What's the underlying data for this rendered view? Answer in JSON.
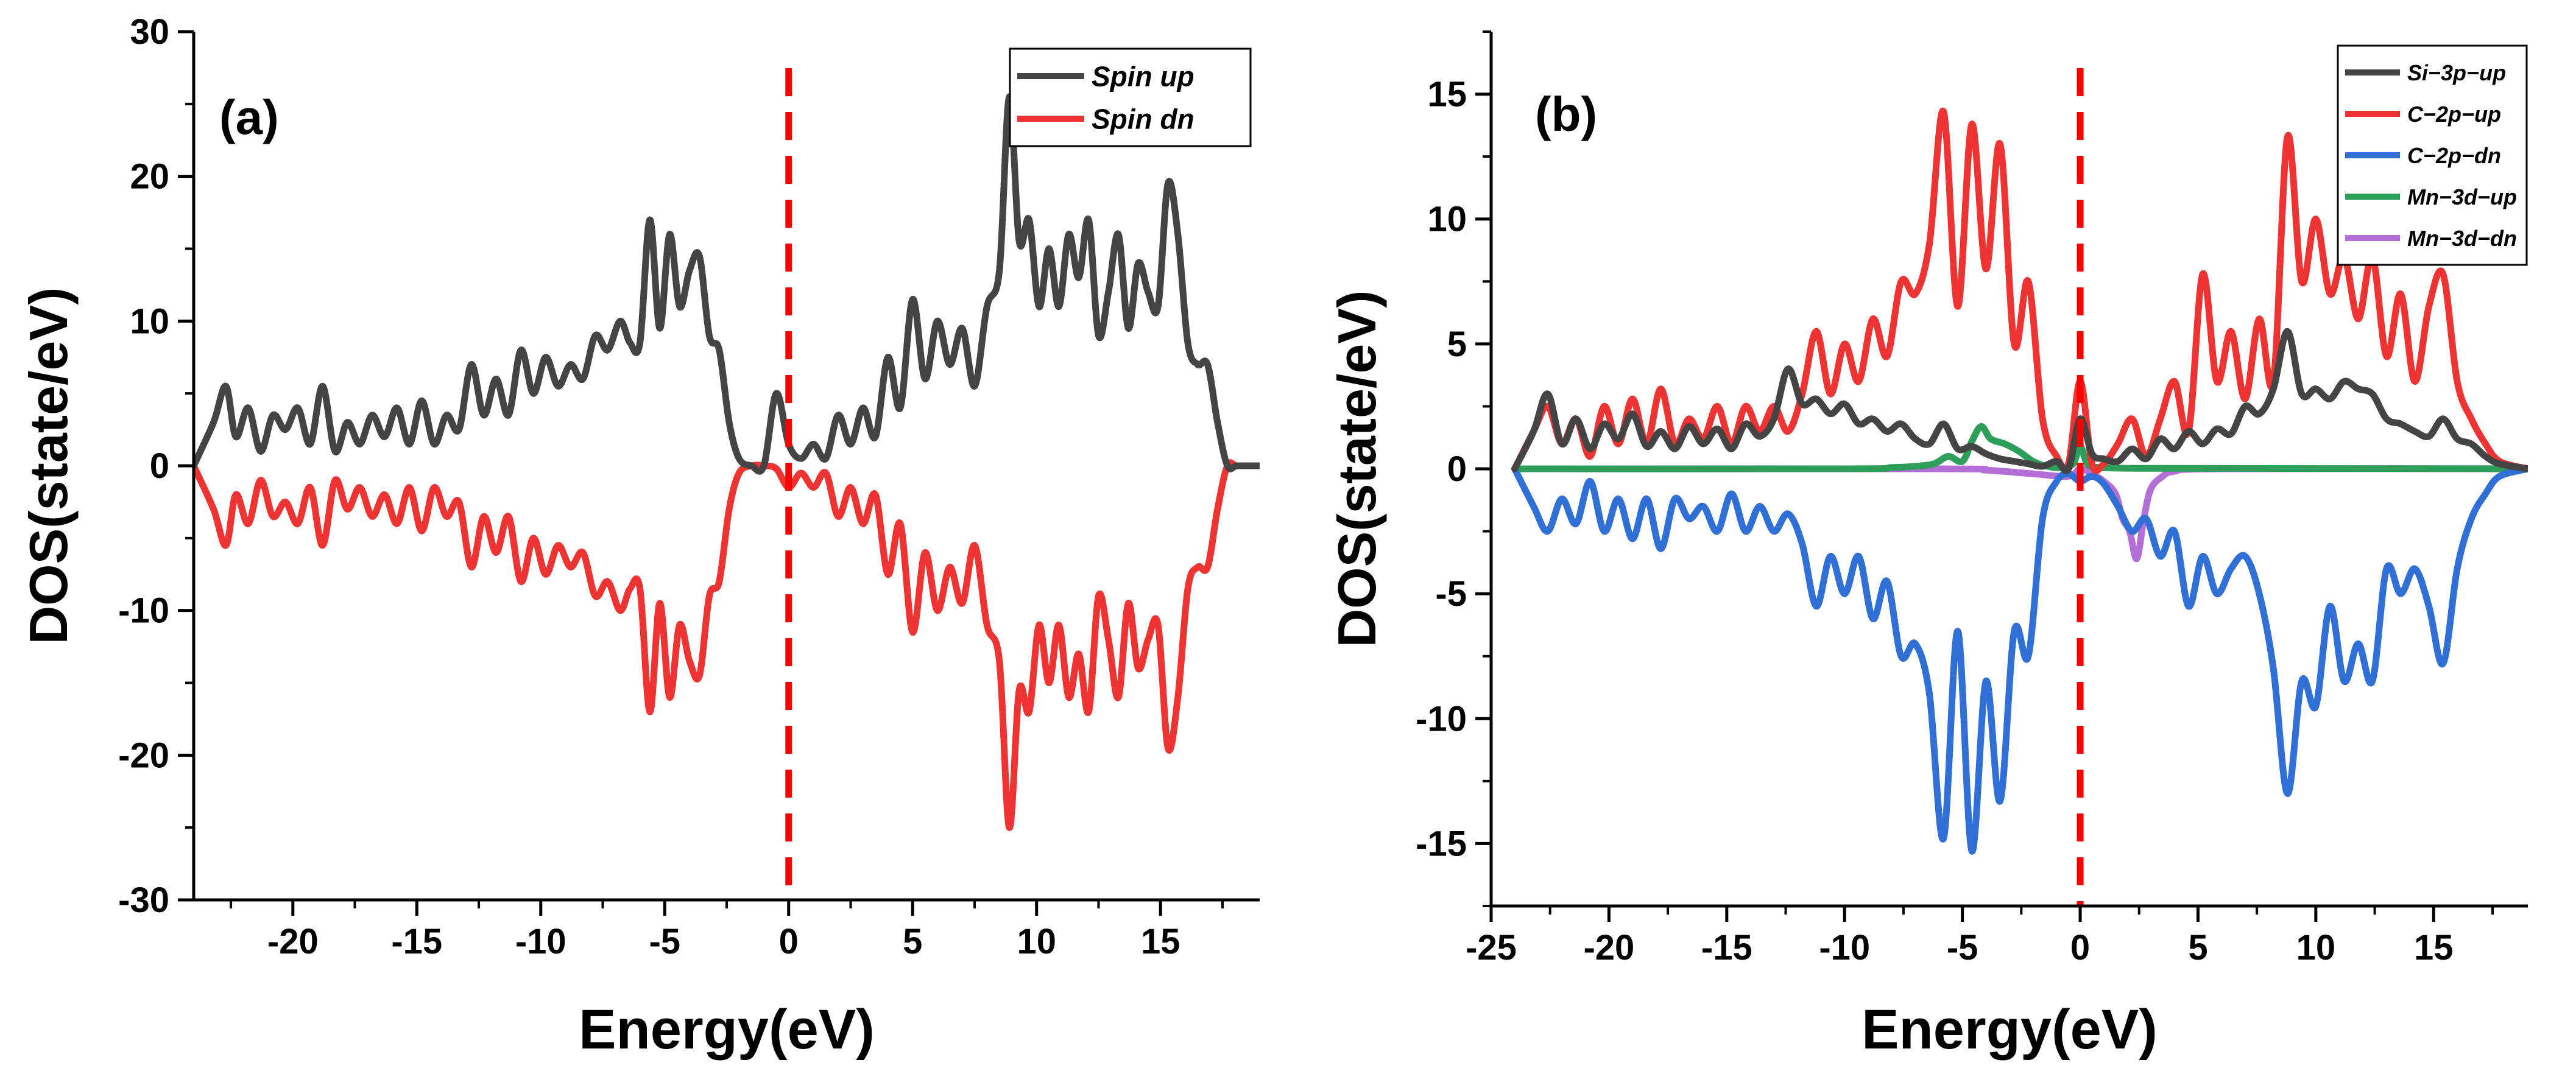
{
  "chart_data": [
    {
      "type": "line",
      "panel_label": "(a)",
      "xlabel": "Energy(eV)",
      "ylabel": "DOS(state/eV)",
      "xlim": [
        -24,
        19
      ],
      "ylim": [
        -30,
        30
      ],
      "xticks": [
        -20,
        -15,
        -10,
        -5,
        0,
        5,
        10,
        15
      ],
      "xtick_labels": [
        "-20",
        "-15",
        "-10",
        "-5",
        "0",
        "5",
        "10",
        "15"
      ],
      "yticks": [
        -30,
        -20,
        -10,
        0,
        10,
        20,
        30
      ],
      "ytick_labels": [
        "-30",
        "-20",
        "-10",
        "0",
        "10",
        "20",
        "30"
      ],
      "fermi_level": 0,
      "fermi_color": "#ff0000",
      "legend_position": "top-right",
      "series": [
        {
          "name": "Spin up",
          "color": "#444444",
          "x": [
            -24,
            -23.2,
            -22.7,
            -22.3,
            -21.8,
            -21.3,
            -20.8,
            -20.3,
            -19.8,
            -19.3,
            -18.8,
            -18.3,
            -17.8,
            -17.3,
            -16.8,
            -16.3,
            -15.8,
            -15.3,
            -14.8,
            -14.3,
            -13.8,
            -13.3,
            -12.8,
            -12.3,
            -11.8,
            -11.3,
            -10.8,
            -10.3,
            -9.8,
            -9.3,
            -8.8,
            -8.3,
            -7.8,
            -7.3,
            -6.8,
            -6.4,
            -6.0,
            -5.6,
            -5.2,
            -4.8,
            -4.4,
            -4.0,
            -3.6,
            -3.2,
            -2.8,
            -2.4,
            -2.0,
            -1.5,
            -1.0,
            -0.5,
            0,
            0.5,
            1.0,
            1.5,
            2.0,
            2.5,
            3.0,
            3.5,
            4.0,
            4.5,
            5.0,
            5.5,
            6.0,
            6.5,
            7.0,
            7.5,
            8.0,
            8.5,
            8.9,
            9.3,
            9.7,
            10.1,
            10.5,
            10.9,
            11.3,
            11.7,
            12.1,
            12.5,
            12.9,
            13.3,
            13.7,
            14.1,
            14.5,
            14.9,
            15.3,
            15.7,
            16.1,
            16.5,
            16.9,
            17.3,
            17.7,
            18.1,
            19
          ],
          "values": [
            0,
            3,
            5.5,
            2,
            4,
            1,
            3.5,
            2.5,
            4,
            1.5,
            5.5,
            1,
            3,
            1.5,
            3.5,
            2,
            4,
            1.5,
            4.5,
            1.5,
            3.5,
            2.5,
            7,
            3.5,
            6,
            3.5,
            8,
            5,
            7.5,
            5.5,
            7,
            6,
            9,
            8,
            10,
            8.5,
            8.5,
            17,
            9.5,
            16,
            11,
            13.5,
            14.5,
            9,
            8,
            3,
            0.5,
            0,
            0,
            5,
            1.5,
            0.5,
            1.5,
            0.5,
            3.5,
            1.5,
            4,
            2,
            7.5,
            4,
            11.5,
            6,
            10,
            7,
            9.5,
            5.5,
            11,
            13.5,
            25.5,
            15.5,
            17,
            11,
            15,
            11,
            16,
            13,
            17,
            9,
            12,
            16,
            9.5,
            14,
            12,
            11,
            19.5,
            16,
            8.5,
            7,
            7,
            3,
            0,
            0,
            0
          ]
        },
        {
          "name": "Spin dn",
          "color": "#ee3333",
          "x": [
            -24,
            -23.2,
            -22.7,
            -22.3,
            -21.8,
            -21.3,
            -20.8,
            -20.3,
            -19.8,
            -19.3,
            -18.8,
            -18.3,
            -17.8,
            -17.3,
            -16.8,
            -16.3,
            -15.8,
            -15.3,
            -14.8,
            -14.3,
            -13.8,
            -13.3,
            -12.8,
            -12.3,
            -11.8,
            -11.3,
            -10.8,
            -10.3,
            -9.8,
            -9.3,
            -8.8,
            -8.3,
            -7.8,
            -7.3,
            -6.8,
            -6.4,
            -6.0,
            -5.6,
            -5.2,
            -4.8,
            -4.4,
            -4.0,
            -3.6,
            -3.2,
            -2.8,
            -2.4,
            -2.0,
            -1.5,
            -1.0,
            -0.5,
            0,
            0.5,
            1.0,
            1.5,
            2.0,
            2.5,
            3.0,
            3.5,
            4.0,
            4.5,
            5.0,
            5.5,
            6.0,
            6.5,
            7.0,
            7.5,
            8.0,
            8.5,
            8.9,
            9.3,
            9.7,
            10.1,
            10.5,
            10.9,
            11.3,
            11.7,
            12.1,
            12.5,
            12.9,
            13.3,
            13.7,
            14.1,
            14.5,
            14.9,
            15.3,
            15.7,
            16.1,
            16.5,
            16.9,
            17.3,
            17.7,
            18.1,
            19
          ],
          "values": [
            0,
            -3,
            -5.5,
            -2,
            -4,
            -1,
            -3.5,
            -2.5,
            -4,
            -1.5,
            -5.5,
            -1,
            -3,
            -1.5,
            -3.5,
            -2,
            -4,
            -1.5,
            -4.5,
            -1.5,
            -3.5,
            -2.5,
            -7,
            -3.5,
            -6,
            -3.5,
            -8,
            -5,
            -7.5,
            -5.5,
            -7,
            -6,
            -9,
            -8,
            -10,
            -8.5,
            -8.5,
            -17,
            -9.5,
            -16,
            -11,
            -13.5,
            -14.5,
            -9,
            -8,
            -3,
            -0.5,
            0,
            0,
            -0.2,
            -1.5,
            -0.5,
            -1.5,
            -0.5,
            -3.5,
            -1.5,
            -4,
            -2,
            -7.5,
            -4,
            -11.5,
            -6,
            -10,
            -7,
            -9.5,
            -5.5,
            -11,
            -13.5,
            -25,
            -15.5,
            -17,
            -11,
            -15,
            -11,
            -16,
            -13,
            -17,
            -9,
            -12,
            -16,
            -9.5,
            -14,
            -12,
            -11,
            -19.5,
            -16,
            -8.5,
            -7,
            -7,
            -3,
            0,
            0,
            0
          ]
        }
      ]
    },
    {
      "type": "line",
      "panel_label": "(b)",
      "xlabel": "Energy(eV)",
      "ylabel": "DOS(state/eV)",
      "xlim": [
        -25,
        19
      ],
      "ylim": [
        -17.5,
        17.5
      ],
      "xticks": [
        -25,
        -20,
        -15,
        -10,
        -5,
        0,
        5,
        10,
        15
      ],
      "xtick_labels": [
        "-25",
        "-20",
        "-15",
        "-10",
        "-5",
        "0",
        "5",
        "10",
        "15"
      ],
      "yticks": [
        -15,
        -10,
        -5,
        0,
        5,
        10,
        15
      ],
      "ytick_labels": [
        "-15",
        "-10",
        "-5",
        "0",
        "5",
        "10",
        "15"
      ],
      "fermi_level": 0,
      "fermi_color": "#ff0000",
      "legend_position": "top-right",
      "series": [
        {
          "name": "Si−3p−up",
          "color": "#444444",
          "x": [
            -24,
            -23.2,
            -22.6,
            -22.0,
            -21.4,
            -20.8,
            -20.2,
            -19.6,
            -19.0,
            -18.4,
            -17.8,
            -17.2,
            -16.6,
            -16.0,
            -15.4,
            -14.8,
            -14.2,
            -13.6,
            -13.0,
            -12.4,
            -11.8,
            -11.2,
            -10.6,
            -10.0,
            -9.4,
            -8.8,
            -8.2,
            -7.6,
            -7.0,
            -6.4,
            -5.8,
            -5.2,
            -4.6,
            -4.0,
            -3.4,
            -2.8,
            -2.2,
            -1.6,
            -1.0,
            -0.5,
            0,
            0.5,
            1.0,
            1.6,
            2.2,
            2.8,
            3.4,
            4.0,
            4.6,
            5.2,
            5.8,
            6.4,
            7.0,
            7.6,
            8.2,
            8.8,
            9.4,
            10.0,
            10.6,
            11.2,
            11.8,
            12.4,
            13.0,
            13.6,
            14.2,
            14.8,
            15.4,
            16.0,
            16.6,
            17.2,
            17.8,
            19
          ],
          "values": [
            0,
            1.5,
            3.0,
            1.0,
            2.0,
            0.8,
            1.8,
            1.2,
            2.2,
            0.9,
            1.5,
            0.8,
            1.7,
            1.0,
            1.6,
            0.8,
            1.8,
            1.3,
            2.0,
            4.0,
            2.6,
            2.8,
            2.2,
            2.6,
            1.8,
            2.0,
            1.5,
            1.8,
            1.2,
            1.0,
            1.8,
            0.8,
            0.9,
            0.6,
            0.4,
            0.3,
            0.2,
            0.1,
            0.3,
            0,
            2.0,
            0.6,
            0.4,
            0.3,
            0.8,
            0.4,
            1.2,
            0.8,
            1.5,
            1.0,
            1.6,
            1.4,
            2.5,
            2.2,
            3.2,
            5.5,
            3.0,
            3.2,
            2.8,
            3.5,
            3.2,
            3.0,
            2.0,
            1.8,
            1.5,
            1.3,
            2.0,
            1.2,
            1.0,
            0.5,
            0.2,
            0
          ]
        },
        {
          "name": "C−2p−up",
          "color": "#ee3333",
          "x": [
            -24,
            -23.2,
            -22.6,
            -22.0,
            -21.4,
            -20.8,
            -20.2,
            -19.6,
            -19.0,
            -18.4,
            -17.8,
            -17.2,
            -16.6,
            -16.0,
            -15.4,
            -14.8,
            -14.2,
            -13.6,
            -13.0,
            -12.4,
            -11.8,
            -11.2,
            -10.6,
            -10.0,
            -9.4,
            -8.8,
            -8.2,
            -7.6,
            -7.0,
            -6.4,
            -5.8,
            -5.2,
            -4.6,
            -4.0,
            -3.4,
            -2.8,
            -2.2,
            -1.6,
            -1.0,
            -0.5,
            0,
            0.5,
            1.0,
            1.6,
            2.2,
            2.8,
            3.4,
            4.0,
            4.6,
            5.2,
            5.8,
            6.4,
            7.0,
            7.6,
            8.2,
            8.8,
            9.4,
            10.0,
            10.6,
            11.2,
            11.8,
            12.4,
            13.0,
            13.6,
            14.2,
            14.8,
            15.4,
            16.0,
            16.6,
            17.2,
            17.8,
            19
          ],
          "values": [
            0,
            1.5,
            2.5,
            1.0,
            2.0,
            0.5,
            2.5,
            1.0,
            2.8,
            1.0,
            3.2,
            1.0,
            2.0,
            1.2,
            2.5,
            1.0,
            2.5,
            1.5,
            2.5,
            1.5,
            3.0,
            5.5,
            3.0,
            5.0,
            3.5,
            6.0,
            4.5,
            7.5,
            7.0,
            9.0,
            14.3,
            6.5,
            13.8,
            8.0,
            13.0,
            5.0,
            7.5,
            2.0,
            0.5,
            0.2,
            3.5,
            0.2,
            0.2,
            1.0,
            2.0,
            0.5,
            2.0,
            3.5,
            1.5,
            7.8,
            3.5,
            5.5,
            2.8,
            6.0,
            3.5,
            13.3,
            7.5,
            10.0,
            7.0,
            8.5,
            6.0,
            8.5,
            4.5,
            7.0,
            3.5,
            6.5,
            7.8,
            3.5,
            2.0,
            1.0,
            0.3,
            0
          ]
        },
        {
          "name": "C−2p−dn",
          "color": "#2f6fd6",
          "x": [
            -24,
            -23.2,
            -22.6,
            -22.0,
            -21.4,
            -20.8,
            -20.2,
            -19.6,
            -19.0,
            -18.4,
            -17.8,
            -17.2,
            -16.6,
            -16.0,
            -15.4,
            -14.8,
            -14.2,
            -13.6,
            -13.0,
            -12.4,
            -11.8,
            -11.2,
            -10.6,
            -10.0,
            -9.4,
            -8.8,
            -8.2,
            -7.6,
            -7.0,
            -6.4,
            -5.8,
            -5.2,
            -4.6,
            -4.0,
            -3.4,
            -2.8,
            -2.2,
            -1.6,
            -1.0,
            -0.5,
            0,
            0.5,
            1.0,
            1.6,
            2.2,
            2.8,
            3.4,
            4.0,
            4.6,
            5.2,
            5.8,
            6.4,
            7.0,
            7.6,
            8.2,
            8.8,
            9.4,
            10.0,
            10.6,
            11.2,
            11.8,
            12.4,
            13.0,
            13.6,
            14.2,
            14.8,
            15.4,
            16.0,
            16.6,
            17.2,
            17.8,
            19
          ],
          "values": [
            0,
            -1.5,
            -2.5,
            -1.2,
            -2.2,
            -0.5,
            -2.5,
            -1.2,
            -2.8,
            -1.2,
            -3.2,
            -1.2,
            -2.0,
            -1.5,
            -2.5,
            -1.0,
            -2.5,
            -1.5,
            -2.5,
            -1.8,
            -3.0,
            -5.5,
            -3.5,
            -5.0,
            -3.5,
            -6.0,
            -4.5,
            -7.5,
            -7.0,
            -9.0,
            -14.8,
            -6.5,
            -15.3,
            -8.5,
            -13.3,
            -6.5,
            -7.5,
            -2.0,
            -0.5,
            -0.2,
            -0.5,
            -0.3,
            -0.6,
            -1.5,
            -2.5,
            -2.0,
            -3.5,
            -2.5,
            -5.5,
            -3.5,
            -5.0,
            -4.0,
            -3.5,
            -5.0,
            -8.0,
            -13.0,
            -8.5,
            -9.5,
            -5.5,
            -8.5,
            -7.0,
            -8.5,
            -4.0,
            -5.0,
            -4.0,
            -5.5,
            -7.8,
            -4.0,
            -2.0,
            -1.0,
            -0.3,
            0
          ]
        },
        {
          "name": "Mn−3d−up",
          "color": "#2e9e5b",
          "x": [
            -24,
            -10,
            -8,
            -7,
            -6.2,
            -5.6,
            -5.0,
            -4.6,
            -4.2,
            -3.8,
            -3.2,
            -2.6,
            -2.0,
            -1.4,
            -0.8,
            -0.3,
            0,
            0.3,
            0.8,
            1.5,
            3,
            19
          ],
          "values": [
            0,
            0,
            0.05,
            0.1,
            0.2,
            0.5,
            0.3,
            1.1,
            1.7,
            1.2,
            1.0,
            0.7,
            0.3,
            0.1,
            0.05,
            0.2,
            0.9,
            0.2,
            0.05,
            0.05,
            0.02,
            0
          ]
        },
        {
          "name": "Mn−3d−dn",
          "color": "#b46ed8",
          "x": [
            -24,
            -6,
            -4,
            -2,
            -0.5,
            0,
            0.5,
            1.0,
            1.5,
            1.8,
            2.1,
            2.4,
            2.7,
            3.0,
            3.5,
            4.0,
            6,
            19
          ],
          "values": [
            0,
            0,
            -0.05,
            -0.2,
            -0.3,
            0,
            -0.2,
            -0.5,
            -1.0,
            -2.0,
            -2.5,
            -3.6,
            -2.0,
            -0.8,
            -0.3,
            -0.1,
            0,
            0
          ]
        }
      ]
    }
  ]
}
